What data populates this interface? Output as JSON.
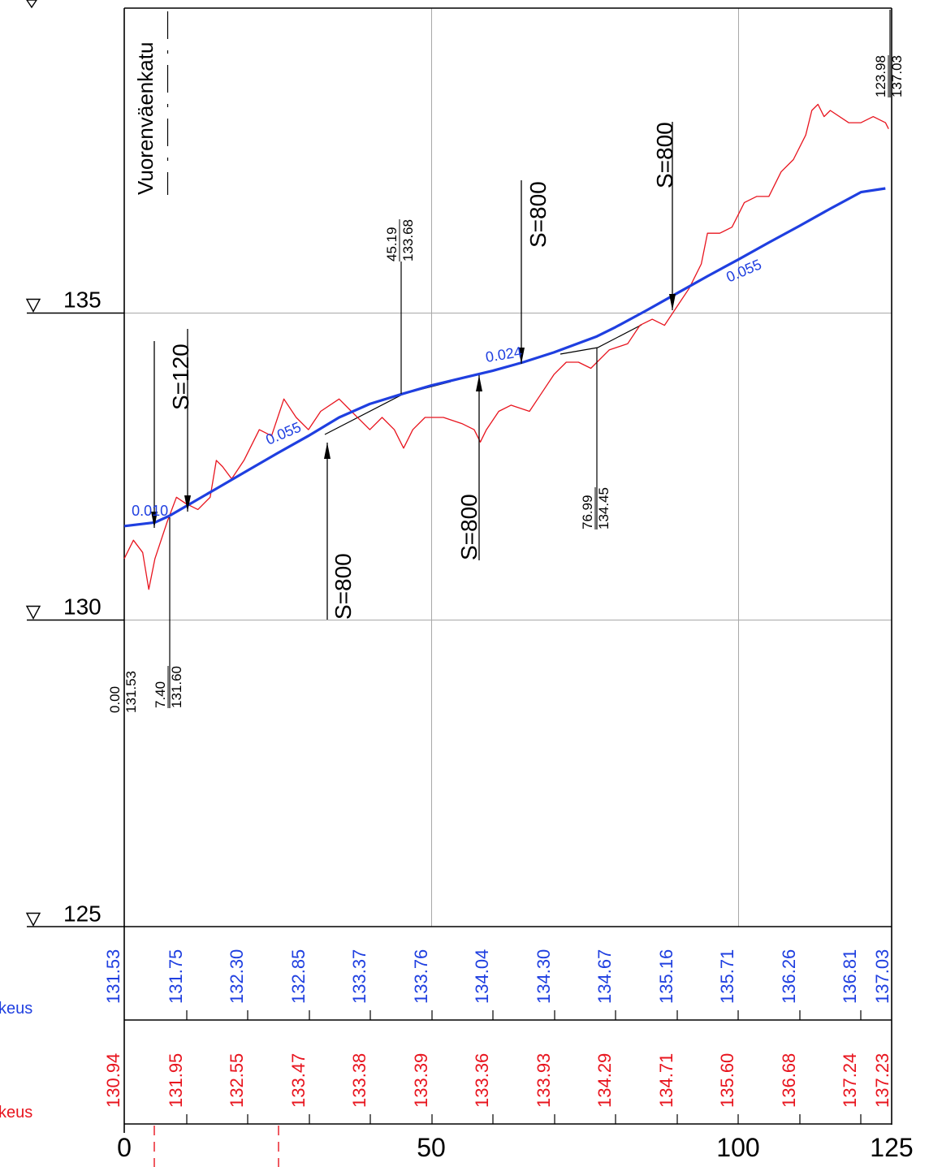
{
  "street_name": "Vuorenväenkatu",
  "elevation_labels": [
    {
      "value": 135,
      "text": "135"
    },
    {
      "value": 130,
      "text": "130"
    },
    {
      "value": 125,
      "text": "125"
    }
  ],
  "station_labels": [
    {
      "value": 0,
      "text": "0"
    },
    {
      "value": 50,
      "text": "50"
    },
    {
      "value": 100,
      "text": "100"
    },
    {
      "value": 125,
      "text": "125"
    }
  ],
  "chart_data": {
    "type": "line",
    "x_range": [
      0,
      125
    ],
    "y_range": [
      125,
      140
    ],
    "grid": true,
    "series": [
      {
        "color": "#e8141e",
        "points": [
          [
            0,
            131.0
          ],
          [
            1.5,
            131.3
          ],
          [
            3,
            131.1
          ],
          [
            4,
            130.5
          ],
          [
            5,
            131.0
          ],
          [
            7,
            131.6
          ],
          [
            8.5,
            132.0
          ],
          [
            10,
            131.9
          ],
          [
            12,
            131.8
          ],
          [
            14,
            132.0
          ],
          [
            15,
            132.6
          ],
          [
            16,
            132.5
          ],
          [
            17.5,
            132.3
          ],
          [
            19.5,
            132.6
          ],
          [
            22,
            133.1
          ],
          [
            24,
            133.0
          ],
          [
            26,
            133.6
          ],
          [
            28,
            133.3
          ],
          [
            30,
            133.1
          ],
          [
            32,
            133.4
          ],
          [
            35,
            133.6
          ],
          [
            37,
            133.4
          ],
          [
            40,
            133.1
          ],
          [
            42,
            133.3
          ],
          [
            44,
            133.1
          ],
          [
            45.5,
            132.8
          ],
          [
            47,
            133.1
          ],
          [
            49,
            133.3
          ],
          [
            52,
            133.3
          ],
          [
            55,
            133.2
          ],
          [
            57,
            133.1
          ],
          [
            58,
            132.9
          ],
          [
            59,
            133.1
          ],
          [
            61,
            133.4
          ],
          [
            63,
            133.5
          ],
          [
            66,
            133.4
          ],
          [
            68,
            133.7
          ],
          [
            70,
            134.0
          ],
          [
            72,
            134.2
          ],
          [
            74,
            134.2
          ],
          [
            76,
            134.1
          ],
          [
            79,
            134.4
          ],
          [
            82,
            134.5
          ],
          [
            84,
            134.8
          ],
          [
            86,
            134.9
          ],
          [
            88,
            134.8
          ],
          [
            90,
            135.1
          ],
          [
            92,
            135.4
          ],
          [
            94,
            135.8
          ],
          [
            95,
            136.3
          ],
          [
            97,
            136.3
          ],
          [
            99,
            136.4
          ],
          [
            101,
            136.8
          ],
          [
            103,
            136.9
          ],
          [
            105,
            136.9
          ],
          [
            107,
            137.3
          ],
          [
            109,
            137.5
          ],
          [
            111,
            137.9
          ],
          [
            112,
            138.3
          ],
          [
            113,
            138.4
          ],
          [
            114,
            138.2
          ],
          [
            115,
            138.3
          ],
          [
            118,
            138.1
          ],
          [
            120,
            138.1
          ],
          [
            122,
            138.2
          ],
          [
            124,
            138.1
          ],
          [
            124.5,
            138.0
          ]
        ]
      },
      {
        "color": "#1f3fe0",
        "points": [
          [
            0,
            131.53
          ],
          [
            5,
            131.59
          ],
          [
            7.4,
            131.7
          ],
          [
            10,
            131.85
          ],
          [
            15,
            132.14
          ],
          [
            20,
            132.43
          ],
          [
            25,
            132.72
          ],
          [
            30,
            133.0
          ],
          [
            35,
            133.3
          ],
          [
            40,
            133.52
          ],
          [
            45.19,
            133.68
          ],
          [
            50,
            133.82
          ],
          [
            55,
            133.94
          ],
          [
            60,
            134.06
          ],
          [
            65,
            134.2
          ],
          [
            70,
            134.36
          ],
          [
            76.99,
            134.62
          ],
          [
            80,
            134.77
          ],
          [
            85,
            135.04
          ],
          [
            90,
            135.32
          ],
          [
            95,
            135.6
          ],
          [
            100,
            135.87
          ],
          [
            105,
            136.15
          ],
          [
            110,
            136.42
          ],
          [
            115,
            136.7
          ],
          [
            120,
            136.97
          ],
          [
            123.98,
            137.03
          ]
        ]
      }
    ]
  },
  "grade_labels": [
    {
      "text": "0.010",
      "x": 1.2,
      "y": 131.7,
      "angle": 0
    },
    {
      "text": "0.055",
      "x": 23.5,
      "y": 132.85,
      "angle": -23
    },
    {
      "text": "0.024",
      "x": 59,
      "y": 134.2,
      "angle": -9
    },
    {
      "text": "0.055",
      "x": 98.5,
      "y": 135.5,
      "angle": -23
    }
  ],
  "curve_marks": [
    {
      "text": "S=120",
      "x": 5.5,
      "y": 134.3
    },
    {
      "text": "S=800",
      "x": 36.5,
      "y": 130.9
    },
    {
      "text": "S=800",
      "x": 57,
      "y": 131.9
    },
    {
      "text": "S=800",
      "x": 68.2,
      "y": 137.9
    },
    {
      "text": "S=800",
      "x": 88.8,
      "y": 139.1
    }
  ],
  "vertex_labels": [
    {
      "station": "0.00",
      "elevation": "131.53"
    },
    {
      "station": "7.40",
      "elevation": "131.60"
    },
    {
      "station": "45.19",
      "elevation": "133.68"
    },
    {
      "station": "76.99",
      "elevation": "134.45"
    },
    {
      "station": "123.98",
      "elevation": "137.03"
    }
  ],
  "design_elevations": [
    "131.53",
    "131.75",
    "132.30",
    "132.85",
    "133.37",
    "133.76",
    "134.04",
    "134.30",
    "134.67",
    "135.16",
    "135.71",
    "136.26",
    "136.81",
    "137.03"
  ],
  "ground_elevations": [
    "130.94",
    "131.95",
    "132.55",
    "133.47",
    "133.38",
    "133.39",
    "133.36",
    "133.93",
    "134.29",
    "134.71",
    "135.60",
    "136.68",
    "137.24",
    "137.23"
  ],
  "row_labels": [
    {
      "text": "keus"
    },
    {
      "text": "keus"
    }
  ]
}
